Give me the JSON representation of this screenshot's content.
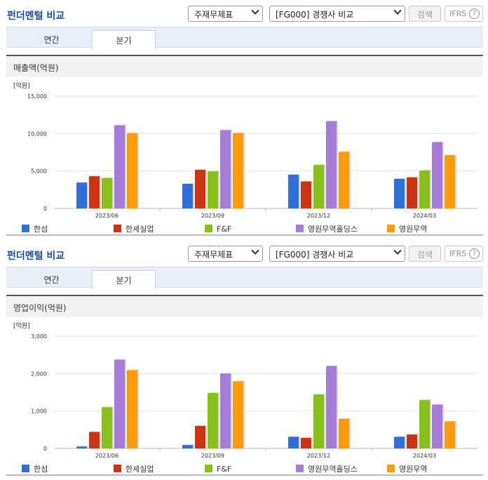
{
  "panels": [
    {
      "title": "펀더멘털 비교",
      "select1": "주재무제표",
      "select2": "[FG000] 경쟁사 비교",
      "search_label": "검색",
      "ifrs_label": "IFRS",
      "ifrs_help": "?",
      "tabs": [
        "연간",
        "분기"
      ],
      "active_tab": "분기",
      "metric_title": "매출액(억원)"
    },
    {
      "title": "펀더멘털 비교",
      "select1": "주재무제표",
      "select2": "[FG000] 경쟁사 비교",
      "search_label": "검색",
      "ifrs_label": "IFRS",
      "ifrs_help": "?",
      "tabs": [
        "연간",
        "분기"
      ],
      "active_tab": "분기",
      "metric_title": "영업이익(억원)"
    }
  ],
  "legend_colors": [
    "#2f6fdc",
    "#cc3311",
    "#88c01a",
    "#a67bd9",
    "#ff9a0a"
  ],
  "chart_data": [
    {
      "type": "bar",
      "title": "매출액(억원)",
      "unit_label": "[억원]",
      "categories": [
        "2023/06",
        "2023/09",
        "2023/12",
        "2024/03"
      ],
      "ylim": [
        0,
        15000
      ],
      "yticks": [
        0,
        5000,
        10000,
        15000
      ],
      "ytick_labels": [
        "0",
        "5,000",
        "10,000",
        "15,000"
      ],
      "grid": true,
      "legend_position": "bottom",
      "series": [
        {
          "name": "한섬",
          "color": "#2f6fdc",
          "values": [
            3450,
            3280,
            4500,
            3950
          ]
        },
        {
          "name": "한세실업",
          "color": "#cc3311",
          "values": [
            4300,
            5150,
            3600,
            4150
          ]
        },
        {
          "name": "F&F",
          "color": "#88c01a",
          "values": [
            4050,
            4950,
            5800,
            5050
          ]
        },
        {
          "name": "영원무역홀딩스",
          "color": "#a67bd9",
          "values": [
            11100,
            10450,
            11650,
            8850
          ]
        },
        {
          "name": "영원무역",
          "color": "#ff9a0a",
          "values": [
            10050,
            10050,
            7550,
            7100
          ]
        }
      ]
    },
    {
      "type": "bar",
      "title": "영업이익(억원)",
      "unit_label": "[억원]",
      "categories": [
        "2023/06",
        "2023/09",
        "2023/12",
        "2024/03"
      ],
      "ylim": [
        0,
        3000
      ],
      "yticks": [
        0,
        1000,
        2000,
        3000
      ],
      "ytick_labels": [
        "0",
        "1,000",
        "2,000",
        "3,000"
      ],
      "grid": true,
      "legend_position": "bottom",
      "series": [
        {
          "name": "한섬",
          "color": "#2f6fdc",
          "values": [
            50,
            90,
            310,
            310
          ]
        },
        {
          "name": "한세실업",
          "color": "#cc3311",
          "values": [
            440,
            600,
            280,
            370
          ]
        },
        {
          "name": "F&F",
          "color": "#88c01a",
          "values": [
            1100,
            1480,
            1440,
            1290
          ]
        },
        {
          "name": "영원무역홀딩스",
          "color": "#a67bd9",
          "values": [
            2370,
            2000,
            2200,
            1170
          ]
        },
        {
          "name": "영원무역",
          "color": "#ff9a0a",
          "values": [
            2090,
            1790,
            790,
            720
          ]
        }
      ]
    }
  ]
}
